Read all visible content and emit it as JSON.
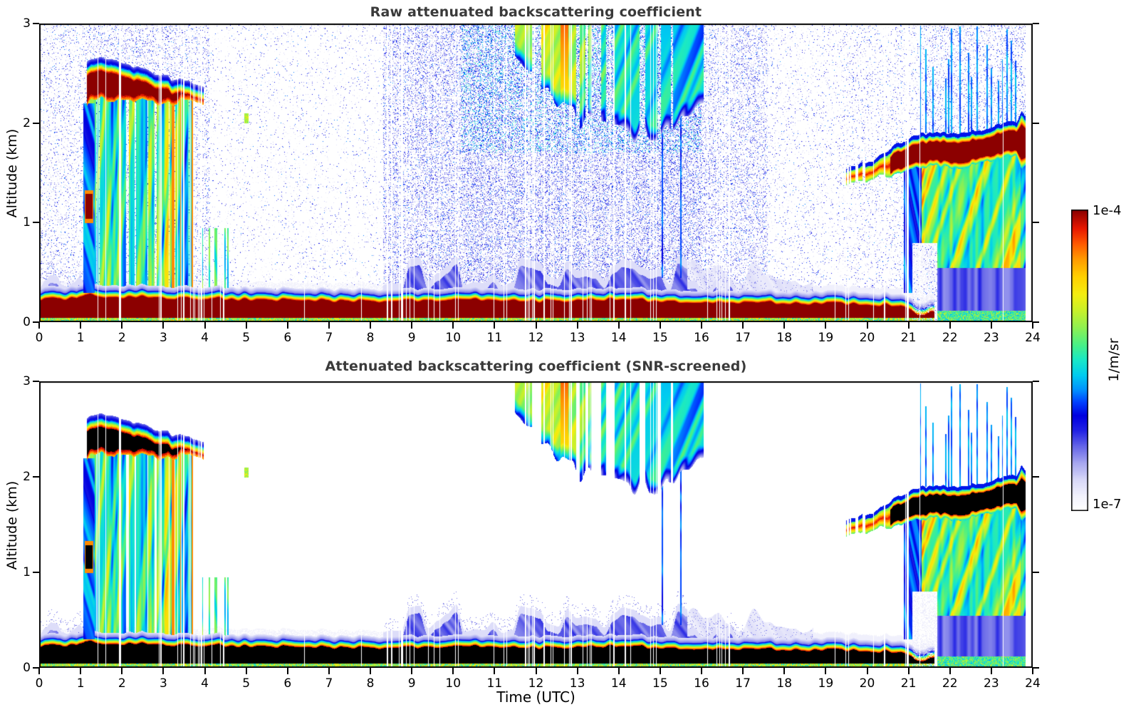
{
  "chart_data": {
    "type": "heatmap",
    "description": "Ceilometer attenuated backscatter time-height curtain plots, 24 h, 0-3 km",
    "data_end_hour": 23.82,
    "x": {
      "label": "Time (UTC)",
      "min": 0,
      "max": 24,
      "ticks": [
        0,
        1,
        2,
        3,
        4,
        5,
        6,
        7,
        8,
        9,
        10,
        11,
        12,
        13,
        14,
        15,
        16,
        17,
        18,
        19,
        20,
        21,
        22,
        23,
        24
      ]
    },
    "y": {
      "label": "Altitude (km)",
      "min": 0,
      "max": 3,
      "ticks": [
        0,
        1,
        2,
        3
      ]
    },
    "panels": [
      {
        "title": "Raw attenuated backscattering coefficient",
        "screened": false
      },
      {
        "title": "Attenuated backscattering coefficient (SNR-screened)",
        "screened": true
      }
    ],
    "colorbar": {
      "label": "1/m/sr",
      "top_label": "1e-4",
      "bottom_label": "1e-7",
      "log_min": -7,
      "log_max": -4,
      "stops": [
        [
          0.0,
          "#ffffff"
        ],
        [
          0.045,
          "#f2f2fc"
        ],
        [
          0.1,
          "#d8d8f8"
        ],
        [
          0.155,
          "#a8a8f0"
        ],
        [
          0.21,
          "#6868e8"
        ],
        [
          0.265,
          "#2222e4"
        ],
        [
          0.315,
          "#0000e0"
        ],
        [
          0.36,
          "#0040ff"
        ],
        [
          0.4,
          "#0090ff"
        ],
        [
          0.45,
          "#00ccf0"
        ],
        [
          0.5,
          "#18e8c8"
        ],
        [
          0.55,
          "#48f088"
        ],
        [
          0.61,
          "#90f050"
        ],
        [
          0.67,
          "#ccf028"
        ],
        [
          0.72,
          "#f4ee10"
        ],
        [
          0.78,
          "#ffd000"
        ],
        [
          0.84,
          "#ff9800"
        ],
        [
          0.89,
          "#ff5800"
        ],
        [
          0.94,
          "#e81800"
        ],
        [
          1.0,
          "#8c0000"
        ]
      ],
      "saturated_color_screened": "#000000"
    },
    "features": [
      {
        "id": "surface_aerosol",
        "type": "surface",
        "t0": 0,
        "t1": 21.62,
        "top_keypoints": [
          [
            0,
            0.3
          ],
          [
            0.9,
            0.31
          ],
          [
            1.1,
            0.36
          ],
          [
            1.6,
            0.33
          ],
          [
            4,
            0.31
          ],
          [
            8.5,
            0.28
          ],
          [
            10,
            0.3
          ],
          [
            12,
            0.28
          ],
          [
            14,
            0.3
          ],
          [
            15.5,
            0.28
          ],
          [
            17,
            0.27
          ],
          [
            19,
            0.26
          ],
          [
            20.8,
            0.24
          ],
          [
            21.1,
            0.17
          ],
          [
            21.35,
            0.15
          ],
          [
            21.62,
            0.17
          ]
        ]
      },
      {
        "id": "morning_fuzz",
        "type": "drizzle",
        "t0": 0,
        "t1": 1.1,
        "top_min": 0.34,
        "top_max": 0.5
      },
      {
        "id": "onset_column",
        "type": "column",
        "t0": 1.06,
        "t1": 1.34,
        "z0": 0.3,
        "z1": 2.2
      },
      {
        "id": "onset_blob",
        "type": "blob",
        "t0": 1.1,
        "t1": 1.3,
        "z0": 1.0,
        "z1": 1.33
      },
      {
        "id": "stratocumulus_1",
        "type": "cloud1",
        "t0": 1.14,
        "t1": 3.96,
        "top_keypoints": [
          [
            1.14,
            2.58
          ],
          [
            1.5,
            2.63
          ],
          [
            2.0,
            2.55
          ],
          [
            2.5,
            2.5
          ],
          [
            3.0,
            2.42
          ],
          [
            3.5,
            2.38
          ],
          [
            3.96,
            2.33
          ]
        ],
        "thickness_keypoints": [
          [
            1.14,
            0.38
          ],
          [
            2.0,
            0.34
          ],
          [
            3.0,
            0.22
          ],
          [
            3.96,
            0.12
          ]
        ]
      },
      {
        "id": "precip_1",
        "type": "precip1",
        "t0": 1.18,
        "t1": 3.72,
        "tail_t1": 4.62,
        "z_bottom": 0.045
      },
      {
        "id": "isolated_dot",
        "type": "blobsmall",
        "t0": 4.95,
        "t1": 5.05,
        "z0": 2.0,
        "z1": 2.1
      },
      {
        "id": "drizzle_mounds",
        "type": "drizzle",
        "t0": 8.3,
        "t1": 15.65,
        "top_min": 0.36,
        "top_max": 0.68
      },
      {
        "id": "drizzle_late",
        "type": "drizzle",
        "t0": 15.65,
        "t1": 17.0,
        "top_min": 0.3,
        "top_max": 0.45
      },
      {
        "id": "pale_wisps",
        "type": "wisps",
        "t0": 15.65,
        "t1": 18.7
      },
      {
        "id": "pale_wisps_late",
        "type": "wisps2",
        "t0": 18.7,
        "t1": 20.85
      },
      {
        "id": "virga_mid",
        "type": "virga",
        "t0": 11.25,
        "t1": 16.05,
        "bottom_keypoints": [
          [
            11.25,
            2.75
          ],
          [
            12.0,
            2.45
          ],
          [
            12.8,
            2.1
          ],
          [
            13.6,
            1.95
          ],
          [
            14.6,
            1.88
          ],
          [
            15.3,
            1.95
          ],
          [
            16.05,
            2.2
          ]
        ],
        "intensity_keypoints": [
          [
            11.25,
            0.53
          ],
          [
            11.9,
            0.62
          ],
          [
            12.3,
            0.68
          ],
          [
            12.9,
            0.62
          ],
          [
            13.3,
            0.55
          ],
          [
            14.2,
            0.5
          ],
          [
            15.0,
            0.48
          ],
          [
            16.05,
            0.42
          ]
        ],
        "red_core_t0": 12.58,
        "red_core_t1": 12.78
      },
      {
        "id": "cyan_columns_15",
        "type": "spikes",
        "t0": 15.02,
        "t1": 15.55,
        "z0": 0.45,
        "z1": 3,
        "density": 0.3,
        "v": 0.36
      },
      {
        "id": "stratus_2",
        "type": "cloud2",
        "t0": 19.45,
        "t1": 23.85,
        "center_keypoints": [
          [
            19.45,
            1.44
          ],
          [
            20.0,
            1.5
          ],
          [
            20.6,
            1.6
          ],
          [
            21.1,
            1.68
          ],
          [
            21.6,
            1.73
          ],
          [
            22.2,
            1.7
          ],
          [
            23.0,
            1.77
          ],
          [
            23.55,
            1.84
          ],
          [
            23.85,
            1.8
          ]
        ],
        "half_keypoints": [
          [
            19.45,
            0.05
          ],
          [
            20.3,
            0.08
          ],
          [
            20.7,
            0.13
          ],
          [
            21.2,
            0.15
          ],
          [
            23.6,
            0.15
          ],
          [
            23.72,
            0.26
          ],
          [
            23.85,
            0.2
          ]
        ],
        "sat_after_t": 20.55,
        "patchy_before_t": 19.95
      },
      {
        "id": "precip_2",
        "type": "precip2",
        "t0": 20.88,
        "t1": 23.85,
        "heavy_after_t": 21.3,
        "blue_top": 0.55,
        "pocket": {
          "t0": 21.08,
          "t1": 21.68,
          "z_top": 0.8
        }
      },
      {
        "id": "cyan_columns_22",
        "type": "spikes",
        "t0": 21.2,
        "t1": 23.6,
        "z0": 1.9,
        "z1": 3,
        "density": 0.17,
        "v": 0.4
      },
      {
        "id": "speckle_noise",
        "type": "noise",
        "raw_only": true,
        "segments": [
          [
            0,
            1.1,
            0.1
          ],
          [
            1.1,
            4.1,
            0.17
          ],
          [
            4.1,
            8.3,
            0.035
          ],
          [
            8.3,
            10.2,
            0.28
          ],
          [
            10.2,
            16.0,
            0.33
          ],
          [
            16.0,
            17.6,
            0.2
          ],
          [
            17.6,
            19.4,
            0.05
          ],
          [
            19.4,
            21.4,
            0.08
          ],
          [
            21.4,
            23.85,
            0.14
          ]
        ],
        "high_z_boost": {
          "t0": 10.2,
          "t1": 16.0,
          "z": 1.7,
          "densx": 1.3,
          "vplus": 0.12
        }
      },
      {
        "id": "data_gaps",
        "type": "gaps",
        "segments": [
          [
            0,
            24,
            0.015
          ],
          [
            2.7,
            4.0,
            0.1
          ],
          [
            4.3,
            4.7,
            0.05
          ],
          [
            8.35,
            9.4,
            0.13
          ],
          [
            9.4,
            11.1,
            0.05
          ],
          [
            11.1,
            13.0,
            0.12
          ],
          [
            13.0,
            14.85,
            0.06
          ],
          [
            14.85,
            15.6,
            0.1
          ],
          [
            16.05,
            16.7,
            0.1
          ],
          [
            17.5,
            20.5,
            0.03
          ],
          [
            20.82,
            21.0,
            0.28
          ],
          [
            23.25,
            23.5,
            0.12
          ]
        ]
      }
    ]
  }
}
